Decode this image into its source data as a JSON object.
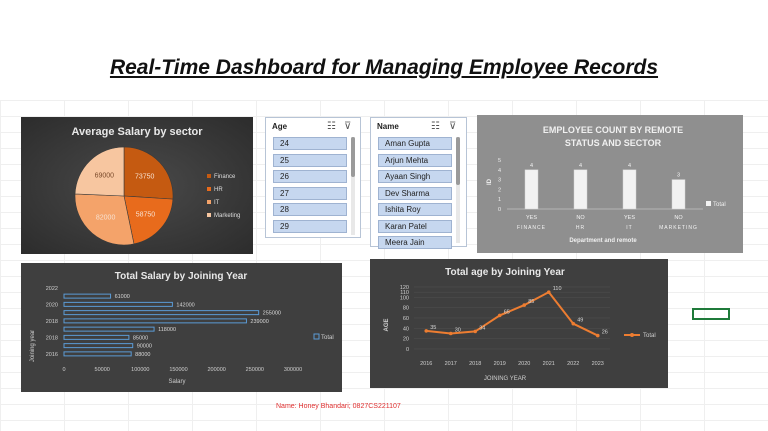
{
  "title": "Real-Time Dashboard for Managing Employee Records",
  "footer": "Name: Honey Bhandari; 0827CS221107",
  "colors": {
    "accent_orange": "#ed7d31",
    "dark_panel": "#3f3f3f",
    "slicer_item": "#c6d7ef",
    "footer_text": "#e03030"
  },
  "icons": {
    "multi_select": "multi-select-icon",
    "clear_filter": "clear-filter-icon"
  },
  "age_slicer": {
    "header": "Age",
    "items": [
      "24",
      "25",
      "26",
      "27",
      "28",
      "29"
    ]
  },
  "name_slicer": {
    "header": "Name",
    "items": [
      "Aman Gupta",
      "Arjun Mehta",
      "Ayaan Singh",
      "Dev Sharma",
      "Ishita Roy",
      "Karan Patel",
      "Meera Jain"
    ]
  },
  "chart_data": [
    {
      "type": "pie",
      "title": "Average Salary by sector",
      "categories": [
        "Finance",
        "HR",
        "IT",
        "Marketing"
      ],
      "values": [
        73750,
        58750,
        82000,
        69000
      ],
      "data_labels": [
        "73750",
        "58750",
        "82000",
        "69000"
      ],
      "colors": [
        "#c55a11",
        "#e86b1c",
        "#f4a36a",
        "#f7c6a0"
      ],
      "legend": "right"
    },
    {
      "type": "bar",
      "title": "EMPLOYEE COUNT BY REMOTE STATUS AND SECTOR",
      "categories": [
        "YES",
        "NO",
        "YES",
        "NO"
      ],
      "groups": [
        "FINANCE",
        "HR",
        "IT",
        "MARKETING"
      ],
      "values": [
        4,
        4,
        4,
        3
      ],
      "xlabel": "Department and remote",
      "ylabel": "ID",
      "ylim": [
        0,
        5
      ],
      "series": [
        {
          "name": "Total",
          "values": [
            4,
            4,
            4,
            3
          ]
        }
      ],
      "legend": "right"
    },
    {
      "type": "bar",
      "orientation": "horizontal",
      "title": "Total Salary by Joining Year",
      "categories": [
        "2016",
        "2017",
        "2018",
        "2019",
        "2020",
        "2021",
        "2022",
        "2023"
      ],
      "values": [
        88000,
        90000,
        85000,
        118000,
        239000,
        255000,
        142000,
        61000
      ],
      "xlabel": "Salary",
      "ylabel": "Joining year",
      "xticks": [
        "0",
        "50000",
        "100000",
        "150000",
        "200000",
        "250000",
        "300000"
      ],
      "yticks": [
        "2016",
        "2018",
        "2018",
        "2020",
        "2022"
      ],
      "xlim": [
        0,
        300000
      ],
      "series": [
        {
          "name": "Total",
          "values": [
            88000,
            90000,
            85000,
            118000,
            239000,
            255000,
            142000,
            61000
          ]
        }
      ],
      "legend": "right"
    },
    {
      "type": "line",
      "title": "Total age by Joining Year",
      "categories": [
        "2016",
        "2017",
        "2018",
        "2019",
        "2020",
        "2021",
        "2022",
        "2023"
      ],
      "values": [
        35,
        30,
        34,
        65,
        85,
        110,
        49,
        26
      ],
      "xlabel": "JOINING YEAR",
      "ylabel": "AGE",
      "ylim": [
        0,
        120
      ],
      "yticks": [
        "0",
        "10",
        "20",
        "30",
        "40",
        "50",
        "60",
        "70",
        "80",
        "90",
        "100",
        "110",
        "120"
      ],
      "series": [
        {
          "name": "Total",
          "values": [
            35,
            30,
            34,
            65,
            85,
            110,
            49,
            26
          ]
        }
      ],
      "legend": "right"
    }
  ]
}
